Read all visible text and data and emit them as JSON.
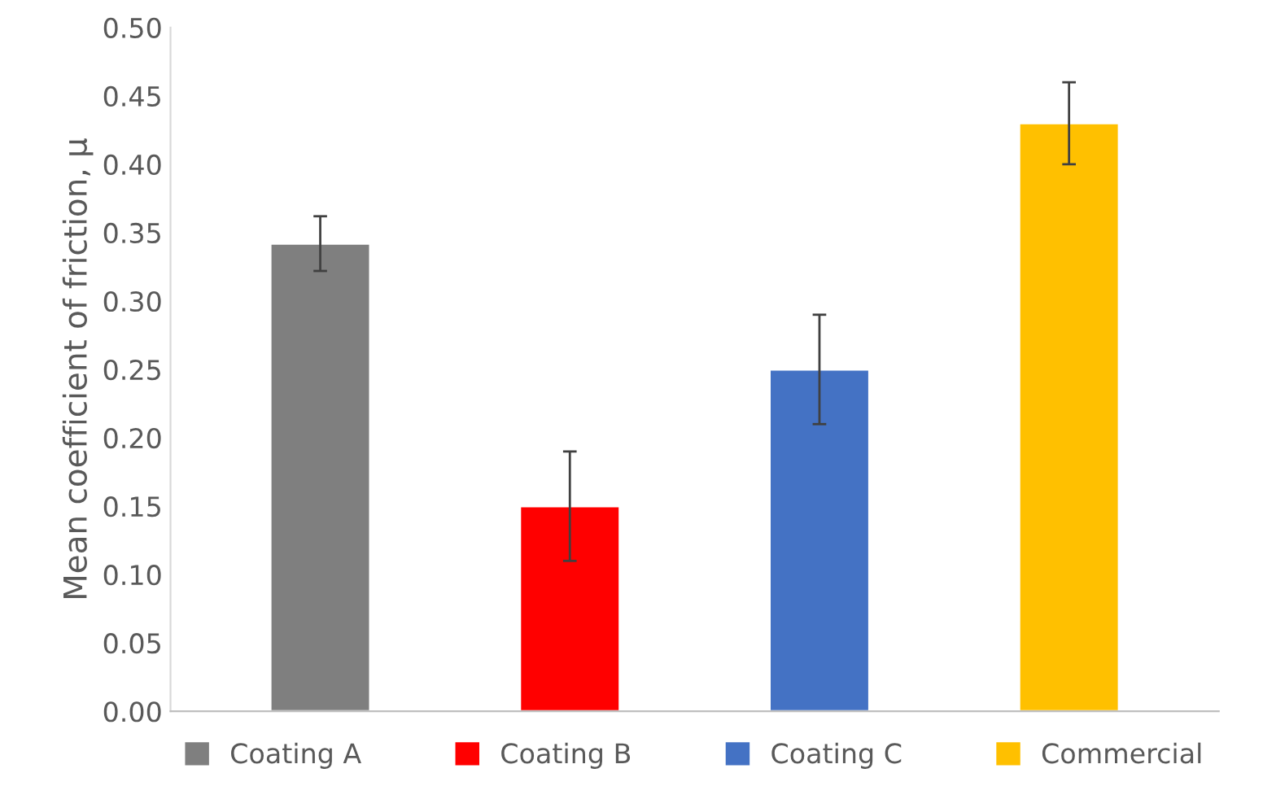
{
  "chart_data": {
    "type": "bar",
    "ylabel": "Mean coefficient of friction, μ",
    "categories": [
      null,
      null,
      null,
      null
    ],
    "series": [
      {
        "name": "Coating A",
        "color": "#7f7f7f",
        "values": [
          0.342,
          null,
          null,
          null
        ],
        "errors": [
          0.02,
          null,
          null,
          null
        ]
      },
      {
        "name": "Coating B",
        "color": "#ff0000",
        "values": [
          null,
          0.15,
          null,
          null
        ],
        "errors": [
          null,
          0.04,
          null,
          null
        ]
      },
      {
        "name": "Coating C",
        "color": "#4472c4",
        "values": [
          null,
          null,
          0.25,
          null
        ],
        "errors": [
          null,
          null,
          0.04,
          null
        ]
      },
      {
        "name": "Commercial",
        "color": "#ffc000",
        "values": [
          null,
          null,
          null,
          0.43
        ],
        "errors": [
          null,
          null,
          null,
          0.03
        ]
      }
    ],
    "ylim": [
      0,
      0.5
    ],
    "yticks": [
      {
        "value": 0,
        "label": "0.00"
      },
      {
        "value": 0.05,
        "label": "0.05"
      },
      {
        "value": 0.1,
        "label": "0.10"
      },
      {
        "value": 0.15,
        "label": "0.15"
      },
      {
        "value": 0.2,
        "label": "0.20"
      },
      {
        "value": 0.25,
        "label": "0.25"
      },
      {
        "value": 0.3,
        "label": "0.30"
      },
      {
        "value": 0.35,
        "label": "0.35"
      },
      {
        "value": 0.4,
        "label": "0.40"
      },
      {
        "value": 0.45,
        "label": "0.45"
      },
      {
        "value": 0.5,
        "label": "0.50"
      }
    ],
    "grid": false,
    "legend": "bottom",
    "tick_labels": "y"
  }
}
